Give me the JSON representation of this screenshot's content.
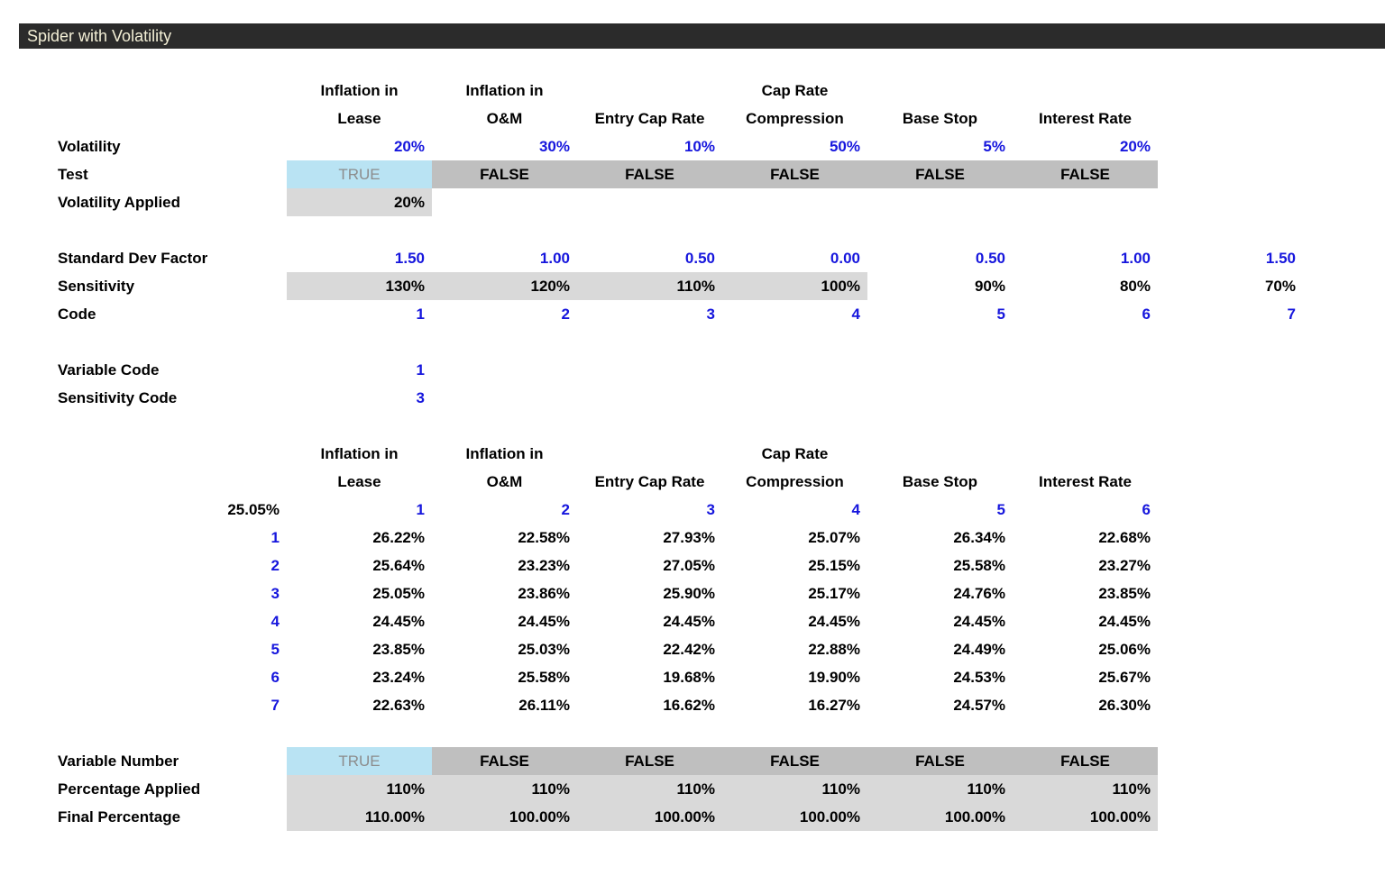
{
  "title": "Spider with Volatility",
  "headers": [
    {
      "line1": "Inflation in",
      "line2": "Lease"
    },
    {
      "line1": "Inflation in",
      "line2": "O&M"
    },
    {
      "line1": "",
      "line2": "Entry Cap Rate"
    },
    {
      "line1": "Cap Rate",
      "line2": "Compression"
    },
    {
      "line1": "",
      "line2": "Base Stop"
    },
    {
      "line1": "",
      "line2": "Interest Rate"
    }
  ],
  "top": {
    "volatility": {
      "label": "Volatility",
      "values": [
        "20%",
        "30%",
        "10%",
        "50%",
        "5%",
        "20%"
      ]
    },
    "test": {
      "label": "Test",
      "values": [
        "TRUE",
        "FALSE",
        "FALSE",
        "FALSE",
        "FALSE",
        "FALSE"
      ]
    },
    "volatility_applied": {
      "label": "Volatility Applied",
      "value": "20%"
    }
  },
  "factors": {
    "std_dev": {
      "label": "Standard Dev Factor",
      "values": [
        "1.50",
        "1.00",
        "0.50",
        "0.00",
        "0.50",
        "1.00",
        "1.50"
      ]
    },
    "sensitivity": {
      "label": "Sensitivity",
      "values": [
        "130%",
        "120%",
        "110%",
        "100%",
        "90%",
        "80%",
        "70%"
      ]
    },
    "code": {
      "label": "Code",
      "values": [
        "1",
        "2",
        "3",
        "4",
        "5",
        "6",
        "7"
      ]
    }
  },
  "codes": {
    "variable_code": {
      "label": "Variable Code",
      "value": "1"
    },
    "sensitivity_code": {
      "label": "Sensitivity Code",
      "value": "3"
    }
  },
  "matrix": {
    "corner": "25.05%",
    "col_numbers": [
      "1",
      "2",
      "3",
      "4",
      "5",
      "6"
    ],
    "rows": [
      {
        "num": "1",
        "values": [
          "26.22%",
          "22.58%",
          "27.93%",
          "25.07%",
          "26.34%",
          "22.68%"
        ]
      },
      {
        "num": "2",
        "values": [
          "25.64%",
          "23.23%",
          "27.05%",
          "25.15%",
          "25.58%",
          "23.27%"
        ]
      },
      {
        "num": "3",
        "values": [
          "25.05%",
          "23.86%",
          "25.90%",
          "25.17%",
          "24.76%",
          "23.85%"
        ]
      },
      {
        "num": "4",
        "values": [
          "24.45%",
          "24.45%",
          "24.45%",
          "24.45%",
          "24.45%",
          "24.45%"
        ]
      },
      {
        "num": "5",
        "values": [
          "23.85%",
          "25.03%",
          "22.42%",
          "22.88%",
          "24.49%",
          "25.06%"
        ]
      },
      {
        "num": "6",
        "values": [
          "23.24%",
          "25.58%",
          "19.68%",
          "19.90%",
          "24.53%",
          "25.67%"
        ]
      },
      {
        "num": "7",
        "values": [
          "22.63%",
          "26.11%",
          "16.62%",
          "16.27%",
          "24.57%",
          "26.30%"
        ]
      }
    ]
  },
  "bottom": {
    "variable_number": {
      "label": "Variable Number",
      "values": [
        "TRUE",
        "FALSE",
        "FALSE",
        "FALSE",
        "FALSE",
        "FALSE"
      ]
    },
    "percentage_applied": {
      "label": "Percentage Applied",
      "values": [
        "110%",
        "110%",
        "110%",
        "110%",
        "110%",
        "110%"
      ]
    },
    "final_percentage": {
      "label": "Final Percentage",
      "values": [
        "110.00%",
        "100.00%",
        "100.00%",
        "100.00%",
        "100.00%",
        "100.00%"
      ]
    }
  },
  "colors": {
    "title_bg": "#2b2b2b",
    "title_text": "#f3efd6",
    "input_blue": "#1616dd",
    "true_fill": "#b9e3f3",
    "false_fill": "#bfbfbf",
    "light_fill": "#d9d9d9"
  }
}
